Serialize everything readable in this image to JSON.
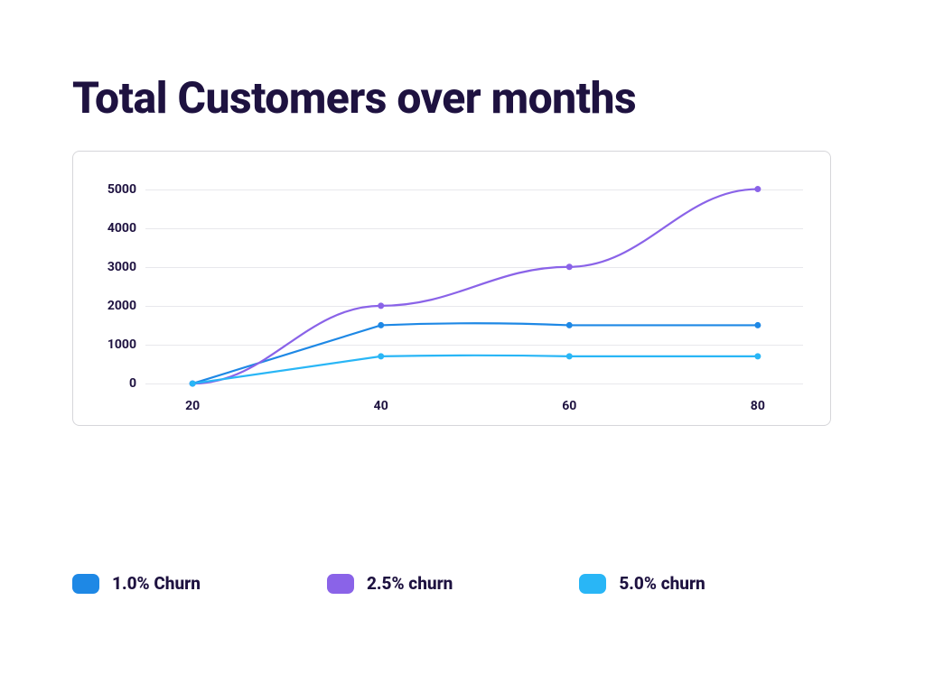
{
  "title": "Total Customers over months",
  "chart": {
    "type": "line",
    "background_color": "#ffffff",
    "border_color": "#d6d6da",
    "grid_color": "#e8e8ec",
    "title_color": "#1e1240",
    "tick_color": "#1e1240",
    "tick_fontsize": 14,
    "tick_fontweight": 700,
    "x": {
      "ticks": [
        20,
        40,
        60,
        80
      ],
      "min": 15,
      "max": 85
    },
    "y": {
      "ticks": [
        0,
        1000,
        2000,
        3000,
        4000,
        5000
      ],
      "min": -300,
      "max": 5500
    },
    "series": [
      {
        "name": "1.0% Churn",
        "color": "#1e88e5",
        "line_width": 2.2,
        "marker_radius": 3.5,
        "points": [
          {
            "x": 20,
            "y": 0
          },
          {
            "x": 40,
            "y": 1500
          },
          {
            "x": 60,
            "y": 1500
          },
          {
            "x": 80,
            "y": 1500
          }
        ],
        "control": 1600
      },
      {
        "name": "2.5% churn",
        "color": "#8a63e8",
        "line_width": 2.2,
        "marker_radius": 3.5,
        "points": [
          {
            "x": 20,
            "y": 0
          },
          {
            "x": 40,
            "y": 2000
          },
          {
            "x": 60,
            "y": 3000
          },
          {
            "x": 80,
            "y": 5000
          }
        ],
        "control": null
      },
      {
        "name": "5.0% churn",
        "color": "#29b6f6",
        "line_width": 2.2,
        "marker_radius": 3.5,
        "points": [
          {
            "x": 20,
            "y": 0
          },
          {
            "x": 40,
            "y": 700
          },
          {
            "x": 60,
            "y": 700
          },
          {
            "x": 80,
            "y": 700
          }
        ],
        "control": 750
      }
    ]
  },
  "legend": {
    "items": [
      {
        "label": "1.0% Churn",
        "color": "#1e88e5"
      },
      {
        "label": "2.5% churn",
        "color": "#8a63e8"
      },
      {
        "label": "5.0% churn",
        "color": "#29b6f6"
      }
    ],
    "label_fontsize": 19,
    "label_fontweight": 800,
    "label_color": "#1e1240",
    "swatch_radius": 7
  }
}
